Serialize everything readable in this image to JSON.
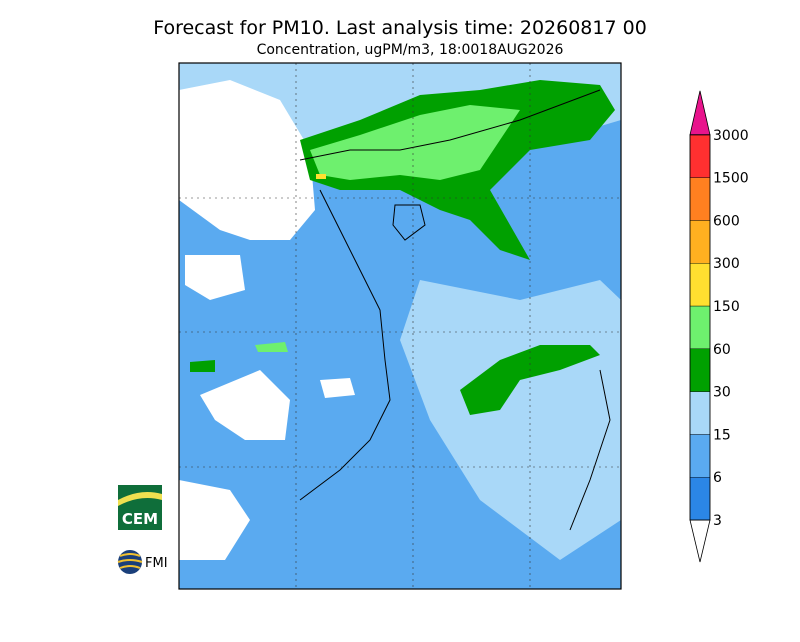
{
  "header": {
    "title": "Forecast for PM10. Last analysis time: 20260817 00",
    "subtitle": "Concentration, ugPM/m3, 18:0018AUG2026"
  },
  "legend": {
    "levels": [
      3,
      6,
      15,
      30,
      60,
      150,
      300,
      600,
      1500,
      3000
    ],
    "colors": [
      "#ffffff",
      "#2b86e6",
      "#5aaaf0",
      "#a9d8f8",
      "#00a000",
      "#6ef06e",
      "#ffe030",
      "#ffb020",
      "#ff8020",
      "#ff3030",
      "#e8148c"
    ]
  },
  "logos": {
    "cem": "CEM",
    "fmi": "FMI"
  }
}
